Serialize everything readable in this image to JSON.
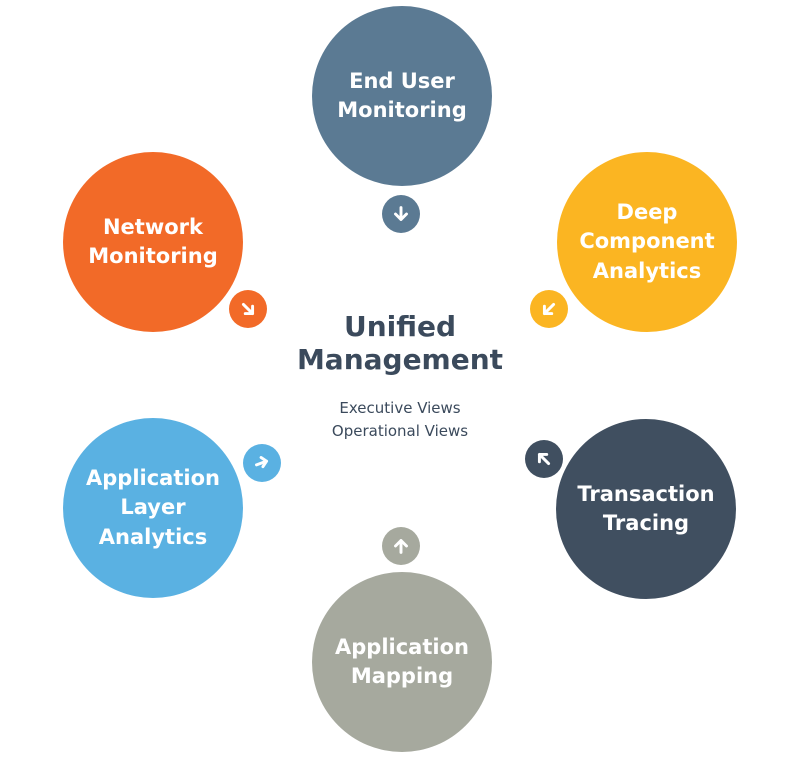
{
  "center": {
    "title_line1": "Unified",
    "title_line2": "Management",
    "sub_line1": "Executive Views",
    "sub_line2": "Operational Views"
  },
  "nodes": {
    "end_user": {
      "label": "End User Monitoring",
      "color": "#5b7a93",
      "arrow": "arrow-down-icon"
    },
    "deep": {
      "label": "Deep Component Analytics",
      "color": "#fbb522",
      "arrow": "arrow-down-left-icon"
    },
    "transaction": {
      "label": "Transaction Tracing",
      "color": "#404f60",
      "arrow": "arrow-up-left-icon"
    },
    "mapping": {
      "label": "Application Mapping",
      "color": "#a6a99e",
      "arrow": "arrow-up-icon"
    },
    "app_layer": {
      "label": "Application Layer Analytics",
      "color": "#5ab1e2",
      "arrow": "arrow-right-icon"
    },
    "network": {
      "label": "Network Monitoring",
      "color": "#f26a28",
      "arrow": "arrow-down-right-icon"
    }
  }
}
